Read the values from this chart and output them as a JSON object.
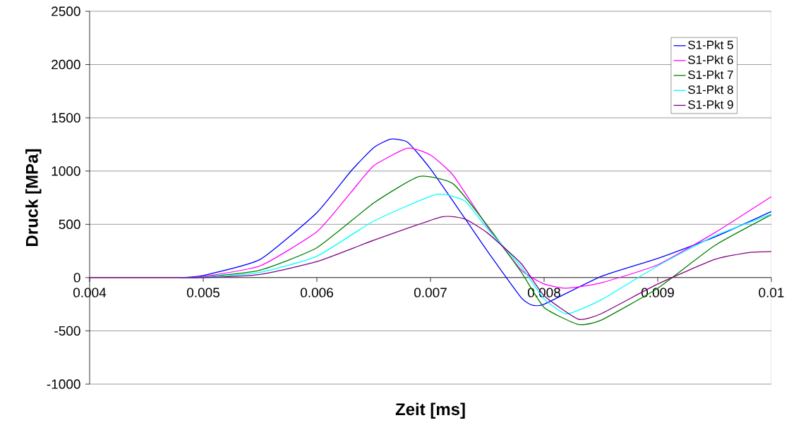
{
  "chart_data": {
    "type": "line",
    "xlabel": "Zeit [ms]",
    "ylabel": "Druck [MPa]",
    "xlim": [
      0.004,
      0.01
    ],
    "ylim": [
      -1000,
      2500
    ],
    "xticks": [
      0.004,
      0.005,
      0.006,
      0.007,
      0.008,
      0.009,
      0.01
    ],
    "yticks": [
      -1000,
      -500,
      0,
      500,
      1000,
      1500,
      2000,
      2500
    ],
    "grid": "y",
    "legend": "top right",
    "line_style": "solid",
    "series": [
      {
        "name": "S1-Pkt 5",
        "color": "#0000ff",
        "x": [
          0.0048,
          0.005,
          0.0055,
          0.006,
          0.0063,
          0.0065,
          0.00665,
          0.0068,
          0.007,
          0.0073,
          0.0075,
          0.0078,
          0.0079,
          0.008,
          0.0085,
          0.009,
          0.0095,
          0.01
        ],
        "values": [
          0,
          20,
          170,
          610,
          1000,
          1220,
          1300,
          1270,
          1020,
          560,
          250,
          -190,
          -260,
          -250,
          10,
          180,
          380,
          620
        ]
      },
      {
        "name": "S1-Pkt 6",
        "color": "#ff00ff",
        "x": [
          0.0048,
          0.005,
          0.0055,
          0.006,
          0.0063,
          0.0065,
          0.0068,
          0.007,
          0.0072,
          0.0075,
          0.0078,
          0.008,
          0.0082,
          0.0085,
          0.009,
          0.0095,
          0.01
        ],
        "values": [
          0,
          10,
          110,
          430,
          800,
          1050,
          1215,
          1150,
          960,
          480,
          70,
          -60,
          -100,
          -50,
          120,
          420,
          760
        ]
      },
      {
        "name": "S1-Pkt 7",
        "color": "#008000",
        "x": [
          0.0048,
          0.005,
          0.0055,
          0.006,
          0.0065,
          0.0069,
          0.0072,
          0.0075,
          0.0078,
          0.008,
          0.0083,
          0.0085,
          0.009,
          0.0095,
          0.01
        ],
        "values": [
          0,
          5,
          70,
          280,
          700,
          950,
          880,
          490,
          50,
          -280,
          -440,
          -400,
          -100,
          300,
          590
        ]
      },
      {
        "name": "S1-Pkt 8",
        "color": "#00ffff",
        "x": [
          0.0048,
          0.005,
          0.0055,
          0.006,
          0.0065,
          0.00705,
          0.0073,
          0.0075,
          0.0078,
          0.008,
          0.0082,
          0.0085,
          0.009,
          0.0095,
          0.01
        ],
        "values": [
          0,
          3,
          50,
          200,
          530,
          780,
          720,
          460,
          100,
          -200,
          -340,
          -210,
          110,
          390,
          595
        ]
      },
      {
        "name": "S1-Pkt 9",
        "color": "#800080",
        "x": [
          0.004,
          0.0047,
          0.005,
          0.0055,
          0.006,
          0.0065,
          0.0071,
          0.0073,
          0.0075,
          0.0078,
          0.008,
          0.0083,
          0.0085,
          0.009,
          0.0095,
          0.0098,
          0.01
        ],
        "values": [
          0,
          0,
          0,
          30,
          150,
          350,
          570,
          550,
          420,
          130,
          -170,
          -390,
          -340,
          -60,
          170,
          235,
          245
        ]
      }
    ]
  }
}
